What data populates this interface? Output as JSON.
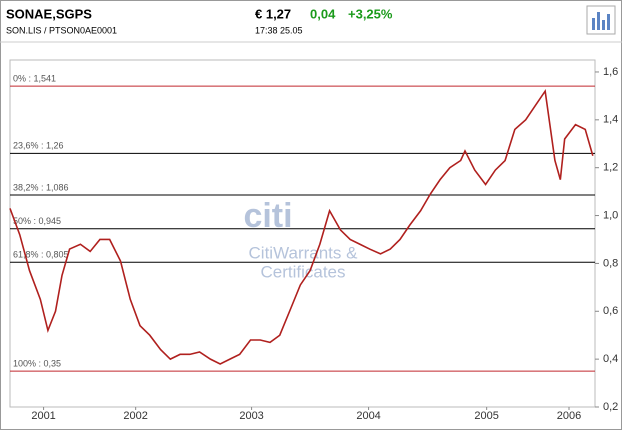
{
  "header": {
    "name": "SONAE,SGPS",
    "id": "SON.LIS  /  PTSON0AE0001",
    "price": "€ 1,27",
    "change": "0,04",
    "change_pct": "+3,25%",
    "time": "17:38   25.05"
  },
  "watermark": {
    "logo": "citi",
    "line1": "CitiWarrants &",
    "line2": "Certificates"
  },
  "chart_data": {
    "type": "line",
    "x": [
      2001.0,
      2001.09,
      2001.18,
      2001.28,
      2001.35,
      2001.42,
      2001.48,
      2001.55,
      2001.65,
      2001.74,
      2001.83,
      2001.92,
      2002.02,
      2002.11,
      2002.2,
      2002.29,
      2002.39,
      2002.48,
      2002.57,
      2002.66,
      2002.75,
      2002.85,
      2002.94,
      2003.03,
      2003.12,
      2003.22,
      2003.31,
      2003.4,
      2003.49,
      2003.59,
      2003.68,
      2003.77,
      2003.86,
      2003.95,
      2004.05,
      2004.14,
      2004.23,
      2004.32,
      2004.42,
      2004.51,
      2004.6,
      2004.69,
      2004.79,
      2004.88,
      2004.97,
      2005.06,
      2005.16,
      2005.2,
      2005.29,
      2005.39,
      2005.48,
      2005.57,
      2005.66,
      2005.76,
      2005.85,
      2005.94,
      2006.03,
      2006.08,
      2006.12,
      2006.22,
      2006.31,
      2006.38
    ],
    "series": [
      {
        "color": "#b0201e",
        "values": [
          1.03,
          0.92,
          0.77,
          0.65,
          0.52,
          0.6,
          0.75,
          0.86,
          0.88,
          0.85,
          0.9,
          0.9,
          0.81,
          0.65,
          0.54,
          0.5,
          0.44,
          0.4,
          0.42,
          0.42,
          0.43,
          0.4,
          0.38,
          0.4,
          0.42,
          0.48,
          0.48,
          0.47,
          0.5,
          0.61,
          0.71,
          0.77,
          0.88,
          1.02,
          0.94,
          0.9,
          0.88,
          0.86,
          0.84,
          0.86,
          0.9,
          0.96,
          1.02,
          1.09,
          1.15,
          1.2,
          1.23,
          1.27,
          1.19,
          1.13,
          1.19,
          1.23,
          1.36,
          1.4,
          1.46,
          1.52,
          1.23,
          1.15,
          1.32,
          1.38,
          1.36,
          1.25
        ]
      }
    ],
    "xlim": [
      2001.0,
      2006.4
    ],
    "xticks": [
      {
        "value": 2001.31,
        "label": "2001"
      },
      {
        "value": 2002.16,
        "label": "2002"
      },
      {
        "value": 2003.23,
        "label": "2003"
      },
      {
        "value": 2004.31,
        "label": "2004"
      },
      {
        "value": 2005.4,
        "label": "2005"
      },
      {
        "value": 2006.16,
        "label": "2006"
      }
    ],
    "ylim": [
      0.2,
      1.65
    ],
    "yticks": [
      {
        "value": 0.2,
        "label": "0,2"
      },
      {
        "value": 0.4,
        "label": "0,4"
      },
      {
        "value": 0.6,
        "label": "0,6"
      },
      {
        "value": 0.8,
        "label": "0,8"
      },
      {
        "value": 1.0,
        "label": "1,0"
      },
      {
        "value": 1.2,
        "label": "1,2"
      },
      {
        "value": 1.4,
        "label": "1,4"
      },
      {
        "value": 1.6,
        "label": "1,6"
      }
    ],
    "levels": [
      {
        "value": 1.541,
        "label": "0% : 1,541",
        "color": "#c0282d"
      },
      {
        "value": 1.26,
        "label": "23,6% : 1,26",
        "color": "#000000"
      },
      {
        "value": 1.086,
        "label": "38,2% : 1,086",
        "color": "#000000"
      },
      {
        "value": 0.945,
        "label": "50% : 0,945",
        "color": "#000000"
      },
      {
        "value": 0.805,
        "label": "61,8% : 0,805",
        "color": "#000000"
      },
      {
        "value": 0.35,
        "label": "100% : 0,35",
        "color": "#c0282d"
      }
    ]
  }
}
